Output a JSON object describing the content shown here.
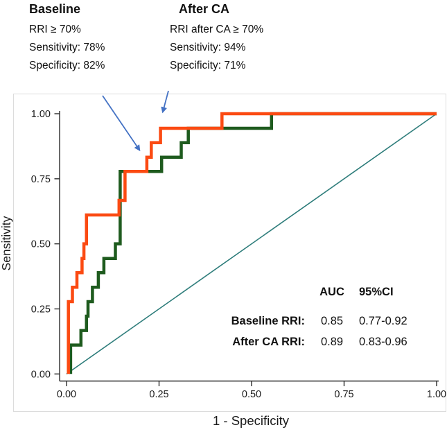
{
  "annotations": {
    "baseline": {
      "title": "Baseline",
      "lines": [
        "RRI ≥ 70%",
        "Sensitivity: 78%",
        "Specificity: 82%"
      ]
    },
    "after_ca": {
      "title": "After CA",
      "lines": [
        "RRI after CA ≥ 70%",
        "Sensitivity: 94%",
        "Specificity: 71%"
      ]
    }
  },
  "stats_table": {
    "headers": {
      "auc": "AUC",
      "ci": "95%CI"
    },
    "rows": [
      {
        "label": "Baseline RRI:",
        "auc": "0.85",
        "ci": "0.77-0.92"
      },
      {
        "label": "After CA RRI:",
        "auc": "0.89",
        "ci": "0.83-0.96"
      }
    ]
  },
  "colors": {
    "baseline_curve": "#1E5B1E",
    "after_ca_curve": "#FB4A12",
    "reference_line": "#2E7D7B",
    "arrow_blue": "#4472C4",
    "axis": "#2b2b2b",
    "plot_border": "#DCDCDC"
  },
  "chart_data": {
    "type": "line",
    "subtype": "ROC step curves",
    "title": "",
    "xlabel": "1 - Specificity",
    "ylabel": "Sensitivity",
    "xlim": [
      0,
      1
    ],
    "ylim": [
      0,
      1
    ],
    "grid": false,
    "legend_position": "none",
    "x_ticks": [
      {
        "value": 0,
        "label": "0.00"
      },
      {
        "value": 0.25,
        "label": "0.25"
      },
      {
        "value": 0.5,
        "label": "0.50"
      },
      {
        "value": 0.75,
        "label": "0.75"
      },
      {
        "value": 1,
        "label": "1.00"
      }
    ],
    "y_ticks": [
      {
        "value": 0,
        "label": "0.00"
      },
      {
        "value": 0.25,
        "label": "0.25"
      },
      {
        "value": 0.5,
        "label": "0.50"
      },
      {
        "value": 0.75,
        "label": "0.75"
      },
      {
        "value": 1,
        "label": "1.00"
      }
    ],
    "series": [
      {
        "id": "reference-diagonal-line",
        "name": "Chance reference",
        "color": "#2E7D7B",
        "width": 1.6,
        "points": [
          [
            0,
            0
          ],
          [
            1,
            1
          ]
        ]
      },
      {
        "id": "baseline-roc-curve",
        "name": "Baseline RRI",
        "auc": 0.85,
        "ci_95": "0.77-0.92",
        "cutoff_sensitivity": 0.78,
        "cutoff_specificity": 0.82,
        "color": "#1E5B1E",
        "width": 4.5,
        "points": [
          [
            0.011,
            0
          ],
          [
            0.011,
            0.111
          ],
          [
            0.039,
            0.111
          ],
          [
            0.039,
            0.167
          ],
          [
            0.054,
            0.167
          ],
          [
            0.054,
            0.222
          ],
          [
            0.058,
            0.222
          ],
          [
            0.058,
            0.278
          ],
          [
            0.07,
            0.278
          ],
          [
            0.07,
            0.333
          ],
          [
            0.086,
            0.333
          ],
          [
            0.086,
            0.389
          ],
          [
            0.101,
            0.389
          ],
          [
            0.101,
            0.444
          ],
          [
            0.132,
            0.444
          ],
          [
            0.132,
            0.5
          ],
          [
            0.145,
            0.5
          ],
          [
            0.145,
            0.778
          ],
          [
            0.257,
            0.778
          ],
          [
            0.257,
            0.833
          ],
          [
            0.31,
            0.833
          ],
          [
            0.31,
            0.889
          ],
          [
            0.329,
            0.889
          ],
          [
            0.329,
            0.944
          ],
          [
            0.554,
            0.944
          ],
          [
            0.554,
            1
          ],
          [
            1,
            1
          ]
        ]
      },
      {
        "id": "after-ca-roc-curve",
        "name": "After CA RRI",
        "auc": 0.89,
        "ci_95": "0.83-0.96",
        "cutoff_sensitivity": 0.94,
        "cutoff_specificity": 0.71,
        "color": "#FB4A12",
        "width": 4.5,
        "points": [
          [
            0.005,
            0
          ],
          [
            0.005,
            0.278
          ],
          [
            0.016,
            0.278
          ],
          [
            0.016,
            0.333
          ],
          [
            0.028,
            0.333
          ],
          [
            0.028,
            0.389
          ],
          [
            0.042,
            0.389
          ],
          [
            0.042,
            0.444
          ],
          [
            0.047,
            0.444
          ],
          [
            0.047,
            0.5
          ],
          [
            0.054,
            0.5
          ],
          [
            0.054,
            0.611
          ],
          [
            0.142,
            0.611
          ],
          [
            0.142,
            0.667
          ],
          [
            0.158,
            0.667
          ],
          [
            0.158,
            0.778
          ],
          [
            0.217,
            0.778
          ],
          [
            0.217,
            0.833
          ],
          [
            0.229,
            0.833
          ],
          [
            0.229,
            0.889
          ],
          [
            0.254,
            0.889
          ],
          [
            0.254,
            0.944
          ],
          [
            0.42,
            0.944
          ],
          [
            0.42,
            1
          ],
          [
            1,
            1
          ]
        ]
      }
    ]
  }
}
